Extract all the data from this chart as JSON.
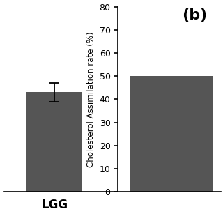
{
  "panel_a": {
    "value": 43,
    "error": 4,
    "bar_color": "#555555",
    "xlabel": "LGG",
    "xlabel_fontsize": 12,
    "xlabel_fontweight": "bold",
    "ylim": [
      0,
      80
    ]
  },
  "panel_b": {
    "label": "(b)",
    "value": 50,
    "bar_color": "#555555",
    "ylabel": "Cholesterol Assimilation rate (%)",
    "ylim": [
      0,
      80
    ],
    "yticks": [
      0,
      10,
      20,
      30,
      40,
      50,
      60,
      70,
      80
    ],
    "ylabel_fontsize": 8.5,
    "label_fontsize": 16,
    "label_fontweight": "bold"
  },
  "bar_width": 0.6,
  "fig_bg": "#ffffff",
  "tick_fontsize": 9,
  "spine_lw": 1.2
}
